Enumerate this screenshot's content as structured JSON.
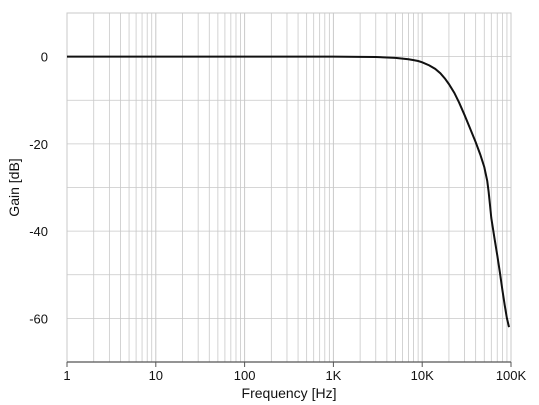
{
  "chart_data": {
    "type": "line",
    "title": "",
    "xlabel": "Frequency [Hz]",
    "ylabel": "Gain [dB]",
    "xscale": "log",
    "xlim": [
      1,
      100000
    ],
    "ylim": [
      -70,
      10
    ],
    "grid": true,
    "legend": "none",
    "x_ticks": [
      {
        "value": 1,
        "label": "1"
      },
      {
        "value": 10,
        "label": "10"
      },
      {
        "value": 100,
        "label": "100"
      },
      {
        "value": 1000,
        "label": "1K"
      },
      {
        "value": 10000,
        "label": "10K"
      },
      {
        "value": 100000,
        "label": "100K"
      }
    ],
    "y_ticks": [
      {
        "value": 0,
        "label": "0"
      },
      {
        "value": -20,
        "label": "-20"
      },
      {
        "value": -40,
        "label": "-40"
      },
      {
        "value": -60,
        "label": "-60"
      }
    ],
    "series": [
      {
        "color": "#111111",
        "points": [
          [
            1,
            0
          ],
          [
            100,
            0
          ],
          [
            1000,
            0
          ],
          [
            2000,
            -0.05
          ],
          [
            3000,
            -0.1
          ],
          [
            4000,
            -0.2
          ],
          [
            5000,
            -0.3
          ],
          [
            6000,
            -0.45
          ],
          [
            7000,
            -0.6
          ],
          [
            8000,
            -0.8
          ],
          [
            9000,
            -1.0
          ],
          [
            10000,
            -1.3
          ],
          [
            12000,
            -2.0
          ],
          [
            14000,
            -2.8
          ],
          [
            16000,
            -3.8
          ],
          [
            18000,
            -5.0
          ],
          [
            20000,
            -6.3
          ],
          [
            23000,
            -8.3
          ],
          [
            26000,
            -10.5
          ],
          [
            30000,
            -13.4
          ],
          [
            35000,
            -16.7
          ],
          [
            40000,
            -19.6
          ],
          [
            45000,
            -22.4
          ],
          [
            50000,
            -25.3
          ],
          [
            54000,
            -28.5
          ],
          [
            56000,
            -31
          ],
          [
            58000,
            -34
          ],
          [
            60000,
            -37
          ],
          [
            65000,
            -41.5
          ],
          [
            70000,
            -45.5
          ],
          [
            75000,
            -49.5
          ],
          [
            80000,
            -53.5
          ],
          [
            85000,
            -57
          ],
          [
            90000,
            -60
          ],
          [
            95000,
            -62
          ]
        ]
      }
    ],
    "colors": {
      "grid": "#c8c8c8",
      "axis": "#555555",
      "line": "#111111"
    }
  }
}
